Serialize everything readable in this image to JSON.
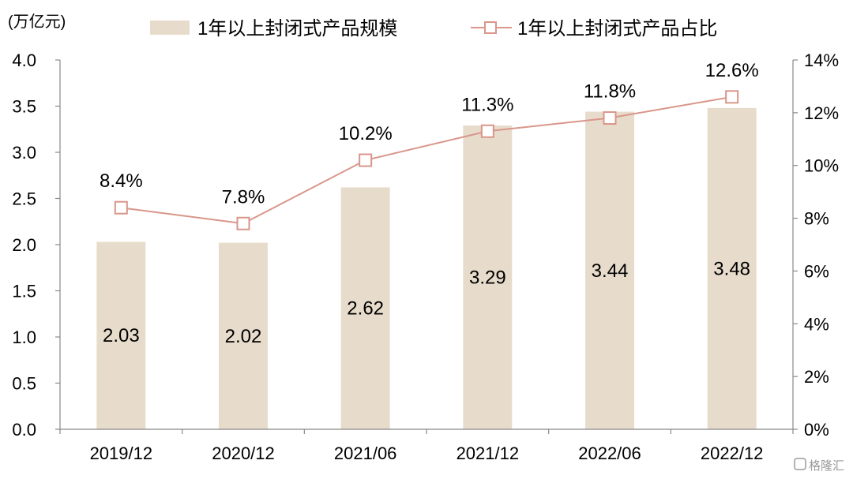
{
  "chart_data": {
    "type": "bar",
    "unit_label": "(万亿元)",
    "categories": [
      "2019/12",
      "2020/12",
      "2021/06",
      "2021/12",
      "2022/06",
      "2022/12"
    ],
    "series": [
      {
        "name": "1年以上封闭式产品规模",
        "type": "bar",
        "axis": "left",
        "values": [
          2.03,
          2.02,
          2.62,
          3.29,
          3.44,
          3.48
        ],
        "labels": [
          "2.03",
          "2.02",
          "2.62",
          "3.29",
          "3.44",
          "3.48"
        ],
        "color": "#e7dccb"
      },
      {
        "name": "1年以上封闭式产品占比",
        "type": "line",
        "axis": "right",
        "values": [
          8.4,
          7.8,
          10.2,
          11.3,
          11.8,
          12.6
        ],
        "labels": [
          "8.4%",
          "7.8%",
          "10.2%",
          "11.3%",
          "11.8%",
          "12.6%"
        ],
        "color": "#d9968a",
        "marker": "hollow-square"
      }
    ],
    "y_left": {
      "ylim": [
        0,
        4.0
      ],
      "ticks": [
        0,
        0.5,
        1.0,
        1.5,
        2.0,
        2.5,
        3.0,
        3.5,
        4.0
      ],
      "tick_labels": [
        "0.0",
        "0.5",
        "1.0",
        "1.5",
        "2.0",
        "2.5",
        "3.0",
        "3.5",
        "4.0"
      ]
    },
    "y_right": {
      "ylim": [
        0,
        14
      ],
      "ticks": [
        0,
        2,
        4,
        6,
        8,
        10,
        12,
        14
      ],
      "tick_labels": [
        "0%",
        "2%",
        "4%",
        "6%",
        "8%",
        "10%",
        "12%",
        "14%"
      ]
    },
    "grid": false,
    "legend_position": "top"
  },
  "watermark": {
    "text": "格隆汇",
    "icon": "gelonghui-logo-icon"
  }
}
